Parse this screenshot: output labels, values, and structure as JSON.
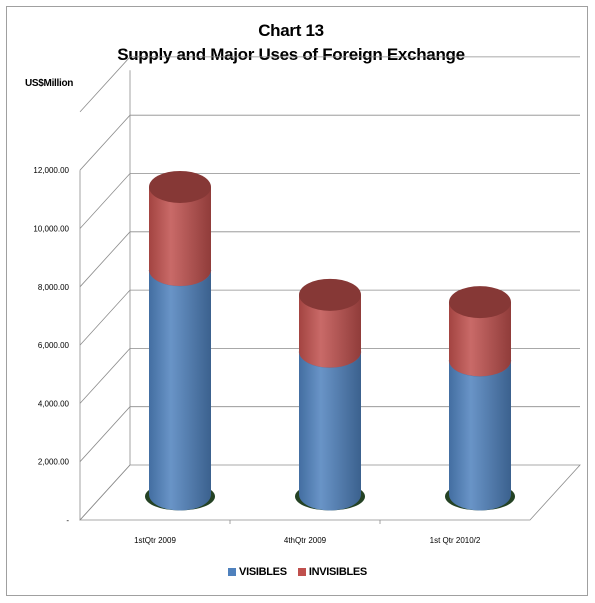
{
  "chart_data": {
    "type": "bar",
    "stacked": true,
    "style": "3d-cylinder",
    "title": "Chart 13",
    "subtitle": "Supply and Major Uses of Foreign Exchange",
    "ylabel": "US$Million",
    "xlabel": "",
    "categories": [
      "1stQtr 2009",
      "4thQtr 2009",
      "1st Qtr 2010/2"
    ],
    "series": [
      {
        "name": "VISIBLES",
        "values": [
          7700,
          4900,
          4600
        ],
        "color": "#4f81bd"
      },
      {
        "name": "INVISIBLES",
        "values": [
          2850,
          1950,
          2000
        ],
        "color": "#c0504d"
      }
    ],
    "ylim": [
      0,
      12000
    ],
    "yticks": [
      {
        "value": 0,
        "label": "-"
      },
      {
        "value": 2000,
        "label": "2,000.00"
      },
      {
        "value": 4000,
        "label": "4,000.00"
      },
      {
        "value": 6000,
        "label": "6,000.00"
      },
      {
        "value": 8000,
        "label": "8,000.00"
      },
      {
        "value": 10000,
        "label": "10,000.00"
      },
      {
        "value": 12000,
        "label": "12,000.00"
      }
    ],
    "grid": true,
    "legend_position": "bottom"
  }
}
